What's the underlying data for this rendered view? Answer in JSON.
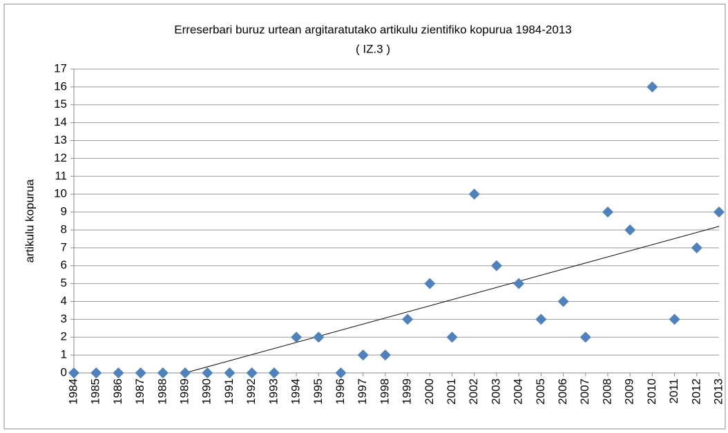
{
  "chart_data": {
    "type": "scatter",
    "title": [
      "Erreserbari buruz urtean argitaratutako artikulu zientifiko kopurua 1984-2013",
      "( IZ.3 )"
    ],
    "y_label": "artikulu kopurua",
    "color": "#4f81bd",
    "x": [
      1984,
      1985,
      1986,
      1987,
      1988,
      1989,
      1990,
      1991,
      1992,
      1993,
      1994,
      1995,
      1996,
      1997,
      1998,
      1999,
      2000,
      2001,
      2002,
      2003,
      2004,
      2005,
      2006,
      2007,
      2008,
      2009,
      2010,
      2011,
      2012,
      2013
    ],
    "values": [
      0,
      0,
      0,
      0,
      0,
      0,
      0,
      0,
      0,
      0,
      2,
      2,
      0,
      1,
      1,
      3,
      5,
      2,
      10,
      6,
      5,
      3,
      4,
      2,
      9,
      8,
      16,
      3,
      7,
      9
    ],
    "trendline": {
      "x": [
        1989,
        2013
      ],
      "y": [
        0,
        8.2
      ]
    },
    "xlim": [
      1984,
      2013
    ],
    "xticks": [
      1984,
      1985,
      1986,
      1987,
      1988,
      1989,
      1990,
      1991,
      1992,
      1993,
      1994,
      1995,
      1996,
      1997,
      1998,
      1999,
      2000,
      2001,
      2002,
      2003,
      2004,
      2005,
      2006,
      2007,
      2008,
      2009,
      2010,
      2011,
      2012,
      2013
    ],
    "ylim": [
      0,
      17
    ],
    "yticks": [
      0,
      1,
      2,
      3,
      4,
      5,
      6,
      7,
      8,
      9,
      10,
      11,
      12,
      13,
      14,
      15,
      16,
      17
    ],
    "grid": true
  }
}
